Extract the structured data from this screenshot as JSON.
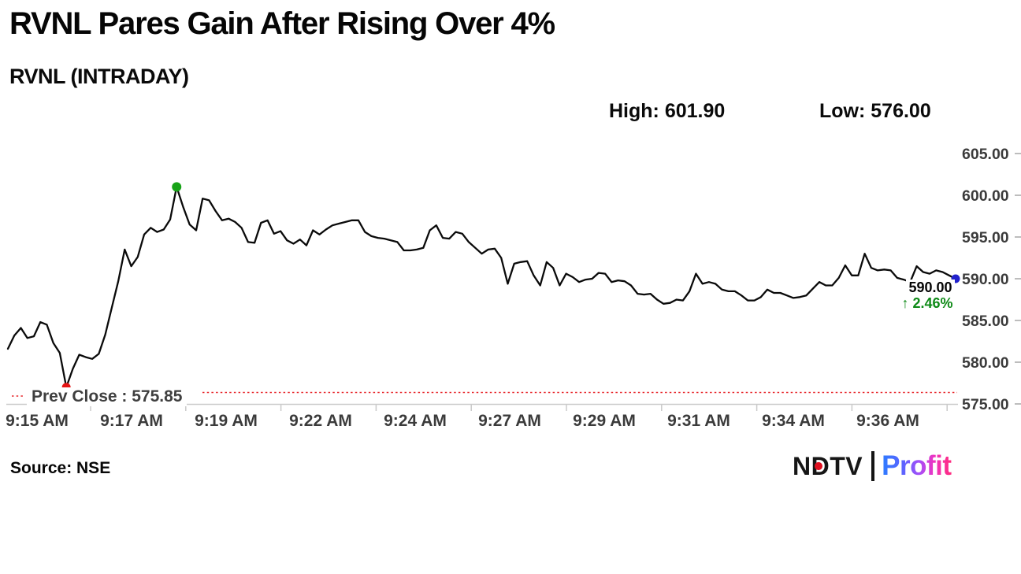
{
  "header": {
    "title": "RVNL Pares Gain After Rising Over 4%",
    "subtitle": "RVNL (INTRADAY)",
    "high_label": "High: 601.90",
    "low_label": "Low: 576.00"
  },
  "chart_text": {
    "prev_close_label": "Prev Close : 575.85",
    "last_price": "590.00",
    "change_arrow": "↑",
    "change_text": "2.46%"
  },
  "footer": {
    "source": "Source: NSE",
    "logo_ndtv": "NDTV",
    "logo_profit": "Profit"
  },
  "colors": {
    "line": "#0a0a0a",
    "prev_close_line": "#e8282d",
    "high_marker": "#17a317",
    "low_marker": "#e51414",
    "last_marker": "#2222cc",
    "change_green": "#0e8a17",
    "axis": "#cacaca",
    "tick_label": "#3b3b3b"
  },
  "chart_data": {
    "type": "line",
    "title": "RVNL (INTRADAY)",
    "xlabel": "",
    "ylabel": "",
    "ylim": [
      575,
      605
    ],
    "grid": false,
    "legend": "none",
    "high": 601.9,
    "low": 576.0,
    "prev_close": 575.85,
    "last": 590.0,
    "change_pct": 2.46,
    "x_tick_labels": [
      "9:15 AM",
      "9:17 AM",
      "9:19 AM",
      "9:22 AM",
      "9:24 AM",
      "9:27 AM",
      "9:29 AM",
      "9:31 AM",
      "9:34 AM",
      "9:36 AM"
    ],
    "y_tick_labels": [
      "605.00",
      "600.00",
      "595.00",
      "590.00",
      "585.00",
      "580.00",
      "575.00"
    ],
    "y_tick_values": [
      605,
      600,
      595,
      590,
      585,
      580,
      575
    ],
    "prices": [
      581.6,
      583.2,
      584.1,
      582.9,
      583.1,
      584.8,
      584.5,
      582.3,
      581.1,
      577.0,
      579.2,
      580.9,
      580.6,
      580.4,
      581.0,
      583.3,
      586.5,
      589.7,
      593.5,
      591.5,
      592.6,
      595.3,
      596.1,
      595.6,
      595.9,
      597.1,
      601.0,
      598.6,
      596.5,
      595.8,
      599.6,
      599.4,
      598.1,
      597.0,
      597.2,
      596.8,
      596.1,
      594.4,
      594.3,
      596.7,
      597.0,
      595.4,
      595.7,
      594.6,
      594.2,
      594.7,
      594.0,
      595.8,
      595.3,
      595.9,
      596.4,
      596.6,
      596.8,
      597.0,
      597.0,
      595.6,
      595.1,
      594.9,
      594.8,
      594.6,
      594.4,
      593.4,
      593.4,
      593.5,
      593.7,
      595.8,
      596.4,
      594.9,
      594.8,
      595.6,
      595.4,
      594.4,
      593.7,
      593.0,
      593.5,
      593.6,
      592.5,
      589.4,
      591.8,
      592.0,
      592.1,
      590.4,
      589.2,
      592.0,
      591.3,
      589.2,
      590.6,
      590.2,
      589.6,
      589.9,
      590.0,
      590.7,
      590.6,
      589.6,
      589.8,
      589.7,
      589.2,
      588.2,
      588.1,
      588.2,
      587.5,
      587.0,
      587.1,
      587.5,
      587.4,
      588.5,
      590.6,
      589.4,
      589.6,
      589.4,
      588.7,
      588.5,
      588.5,
      588.0,
      587.4,
      587.4,
      587.8,
      588.7,
      588.3,
      588.3,
      588.0,
      587.7,
      587.8,
      588.0,
      588.8,
      589.6,
      589.2,
      589.2,
      590.1,
      591.6,
      590.4,
      590.4,
      593.0,
      591.3,
      591.0,
      591.1,
      591.0,
      590.1,
      589.9,
      589.6,
      591.5,
      590.8,
      590.6,
      591.0,
      590.8,
      590.4,
      590.0
    ]
  }
}
